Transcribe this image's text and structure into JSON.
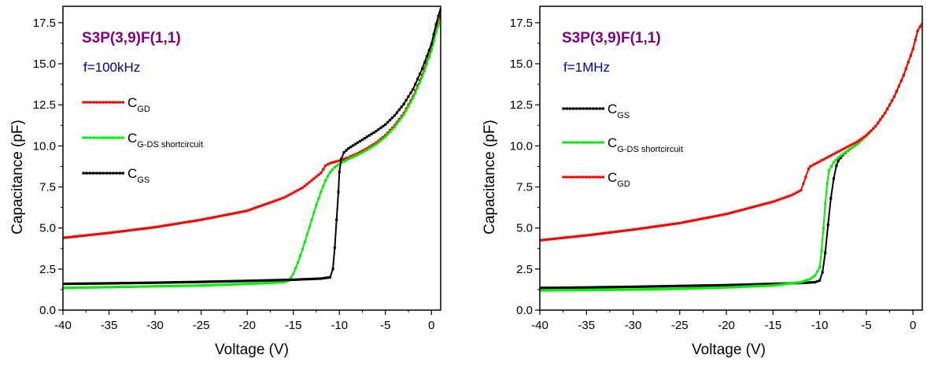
{
  "chart_data": [
    {
      "type": "line",
      "title": "S3P(3,9)F(1,1)",
      "subtitle": "f=100kHz",
      "xlabel": "Voltage (V)",
      "ylabel": "Capacitance (pF)",
      "xlim": [
        -40,
        1
      ],
      "ylim": [
        0,
        18.5
      ],
      "xticks": [
        -40,
        -35,
        -30,
        -25,
        -20,
        -15,
        -10,
        -5,
        0
      ],
      "xtick_labels": [
        "-40",
        "-35",
        "-30",
        "-25",
        "-20",
        "-15",
        "-10",
        "-5",
        "0"
      ],
      "yticks": [
        0,
        2.5,
        5,
        7.5,
        10,
        12.5,
        15,
        17.5
      ],
      "ytick_labels": [
        "0.0",
        "2.5",
        "5.0",
        "7.5",
        "10.0",
        "12.5",
        "15.0",
        "17.5"
      ],
      "legend_position": "left",
      "series": [
        {
          "name_main": "C",
          "name_sub": "GD",
          "color": "#ff0000",
          "x": [
            -40,
            -35,
            -30,
            -25,
            -20,
            -16,
            -14,
            -13,
            -12,
            -11.5,
            -11,
            -10,
            -9,
            -8,
            -7,
            -6,
            -5,
            -4,
            -3,
            -2,
            -1,
            0,
            0.5,
            1
          ],
          "y": [
            4.4,
            4.7,
            5.05,
            5.5,
            6.05,
            6.85,
            7.45,
            7.9,
            8.35,
            8.8,
            8.95,
            9.1,
            9.3,
            9.55,
            9.85,
            10.2,
            10.65,
            11.25,
            12.0,
            13.0,
            14.3,
            15.9,
            17.0,
            18.0
          ]
        },
        {
          "name_main": "C",
          "name_sub": "G-DS shortcircuit",
          "color": "#00ee00",
          "x": [
            -40,
            -35,
            -30,
            -25,
            -20,
            -16,
            -15.5,
            -15,
            -14.5,
            -14,
            -13.5,
            -13,
            -12.5,
            -12,
            -11.5,
            -11,
            -10.5,
            -10,
            -9,
            -8,
            -7,
            -6,
            -5,
            -4,
            -3,
            -2,
            -1,
            0,
            0.5,
            1
          ],
          "y": [
            1.35,
            1.4,
            1.45,
            1.5,
            1.6,
            1.7,
            1.8,
            2.2,
            2.9,
            3.7,
            4.6,
            5.5,
            6.4,
            7.2,
            7.9,
            8.4,
            8.7,
            8.9,
            9.2,
            9.45,
            9.75,
            10.1,
            10.55,
            11.15,
            11.9,
            12.9,
            14.2,
            15.8,
            16.9,
            17.8
          ]
        },
        {
          "name_main": "C",
          "name_sub": "GS",
          "color": "#000000",
          "x": [
            -40,
            -35,
            -30,
            -25,
            -20,
            -15,
            -12,
            -11,
            -10.7,
            -10.5,
            -10.3,
            -10.1,
            -10,
            -9.8,
            -9.5,
            -9,
            -8,
            -7,
            -6,
            -5,
            -4,
            -3,
            -2,
            -1,
            0,
            0.5,
            1
          ],
          "y": [
            1.6,
            1.63,
            1.67,
            1.72,
            1.78,
            1.85,
            1.92,
            2.0,
            2.5,
            3.8,
            5.5,
            7.2,
            8.4,
            9.2,
            9.6,
            9.85,
            10.2,
            10.55,
            10.9,
            11.3,
            11.85,
            12.55,
            13.45,
            14.7,
            16.2,
            17.4,
            18.4
          ]
        }
      ]
    },
    {
      "type": "line",
      "title": "S3P(3,9)F(1,1)",
      "subtitle": "f=1MHz",
      "xlabel": "Voltage (V)",
      "ylabel": "Capacitance (pF)",
      "xlim": [
        -40,
        1
      ],
      "ylim": [
        0,
        18.5
      ],
      "xticks": [
        -40,
        -35,
        -30,
        -25,
        -20,
        -15,
        -10,
        -5,
        0
      ],
      "xtick_labels": [
        "-40",
        "-35",
        "-30",
        "-25",
        "-20",
        "-15",
        "-10",
        "-5",
        "0"
      ],
      "yticks": [
        0,
        2.5,
        5,
        7.5,
        10,
        12.5,
        15,
        17.5
      ],
      "ytick_labels": [
        "0.0",
        "2.5",
        "5.0",
        "7.5",
        "10.0",
        "12.5",
        "15.0",
        "17.5"
      ],
      "legend_position": "left",
      "series": [
        {
          "name_main": "C",
          "name_sub": "GS",
          "color": "#000000",
          "x": [
            -40,
            -35,
            -30,
            -25,
            -20,
            -15,
            -12,
            -10.5,
            -10,
            -9.7,
            -9.4,
            -9.1,
            -8.8,
            -8.5,
            -8.2,
            -8,
            -7.5,
            -7,
            -6,
            -5,
            -4,
            -3,
            -2,
            -1,
            0,
            0.5,
            1
          ],
          "y": [
            1.35,
            1.38,
            1.42,
            1.47,
            1.52,
            1.6,
            1.65,
            1.7,
            1.8,
            2.3,
            3.5,
            5.2,
            6.8,
            8.0,
            8.8,
            9.1,
            9.45,
            9.7,
            10.1,
            10.6,
            11.2,
            12.0,
            13.0,
            14.3,
            15.9,
            17.0,
            17.5
          ]
        },
        {
          "name_main": "C",
          "name_sub": "G-DS shortcircuit",
          "color": "#00ee00",
          "x": [
            -40,
            -35,
            -30,
            -25,
            -20,
            -15,
            -12,
            -11,
            -10.5,
            -10,
            -9.8,
            -9.6,
            -9.4,
            -9.2,
            -9,
            -8.5,
            -8,
            -7,
            -6,
            -5,
            -4,
            -3,
            -2,
            -1,
            0,
            0.5,
            1
          ],
          "y": [
            1.2,
            1.22,
            1.25,
            1.3,
            1.38,
            1.5,
            1.7,
            1.9,
            2.1,
            2.6,
            3.6,
            5.0,
            6.5,
            7.7,
            8.5,
            9.0,
            9.3,
            9.7,
            10.1,
            10.6,
            11.2,
            12.0,
            13.0,
            14.3,
            15.9,
            17.0,
            17.5
          ]
        },
        {
          "name_main": "C",
          "name_sub": "GD",
          "color": "#ff0000",
          "x": [
            -40,
            -35,
            -30,
            -25,
            -20,
            -15,
            -13,
            -12,
            -11.5,
            -11.2,
            -11,
            -10,
            -9,
            -8,
            -7,
            -6,
            -5,
            -4,
            -3,
            -2,
            -1,
            0,
            0.5,
            1
          ],
          "y": [
            4.25,
            4.55,
            4.9,
            5.3,
            5.85,
            6.6,
            7.0,
            7.3,
            8.1,
            8.6,
            8.75,
            9.05,
            9.35,
            9.65,
            9.95,
            10.25,
            10.65,
            11.2,
            12.0,
            13.0,
            14.3,
            15.9,
            17.0,
            17.5
          ]
        }
      ]
    }
  ],
  "title_color": "#800080",
  "subtitle_color": "#00008b"
}
